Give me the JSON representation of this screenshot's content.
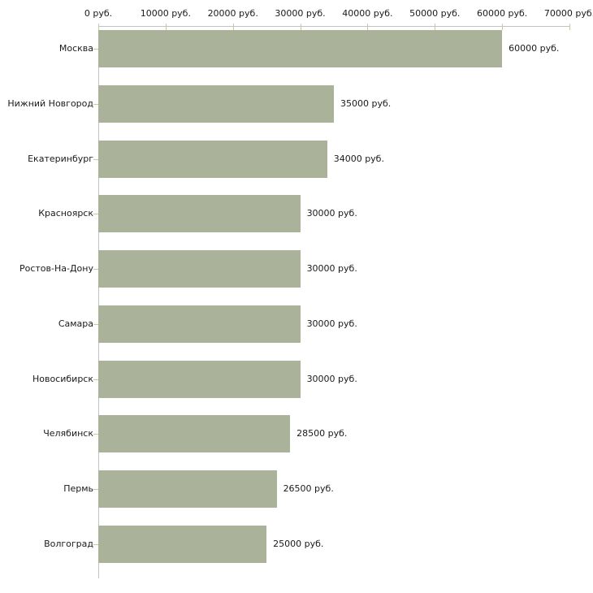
{
  "chart_data": {
    "type": "bar",
    "orientation": "horizontal",
    "title": "",
    "xlabel": "",
    "ylabel": "",
    "unit": "руб.",
    "categories": [
      "Москва",
      "Нижний Новгород",
      "Екатеринбург",
      "Красноярск",
      "Ростов-На-Дону",
      "Самара",
      "Новосибирск",
      "Челябинск",
      "Пермь",
      "Волгоград"
    ],
    "values": [
      60000,
      35000,
      34000,
      30000,
      30000,
      30000,
      30000,
      28500,
      26500,
      25000
    ],
    "value_labels": [
      "60000 руб.",
      "35000 руб.",
      "34000 руб.",
      "30000 руб.",
      "30000 руб.",
      "30000 руб.",
      "30000 руб.",
      "28500 руб.",
      "26500 руб.",
      "25000 руб."
    ],
    "x_ticks": [
      0,
      10000,
      20000,
      30000,
      40000,
      50000,
      60000,
      70000
    ],
    "x_tick_labels": [
      "0 руб.",
      "10000 руб.",
      "20000 руб.",
      "30000 руб.",
      "40000 руб.",
      "50000 руб.",
      "60000 руб.",
      "70000 руб."
    ],
    "xlim": [
      0,
      70000
    ],
    "grid": false,
    "legend": false,
    "colors": {
      "bar": "#aab299",
      "axis": "#c3c3c3",
      "tick": "#c9c99c",
      "text": "#1a1a1a",
      "background": "#ffffff"
    }
  }
}
